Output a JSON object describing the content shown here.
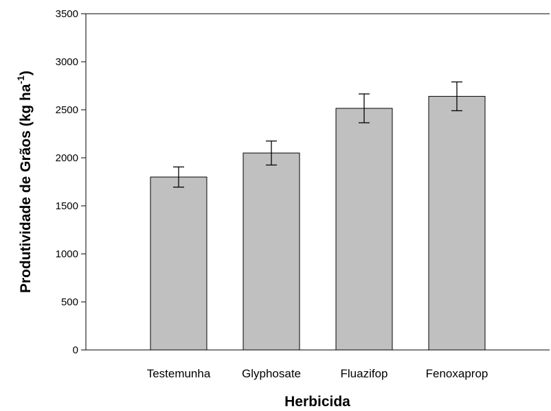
{
  "chart_data": {
    "type": "bar",
    "x_label": "Herbicida",
    "y_label": {
      "text": "Produtividade de Grãos (kg ha",
      "superscript": "-1",
      "suffix": ")"
    },
    "categories": [
      "Testemunha",
      "Glyphosate",
      "Fluazifop",
      "Fenoxaprop"
    ],
    "values": [
      1800,
      2050,
      2515,
      2640
    ],
    "errors": [
      105,
      125,
      150,
      150
    ],
    "color": "#c0c0c0",
    "ylim": [
      0,
      3500
    ],
    "yticks": [
      0,
      500,
      1000,
      1500,
      2000,
      2500,
      3000,
      3500
    ],
    "grid": false
  }
}
